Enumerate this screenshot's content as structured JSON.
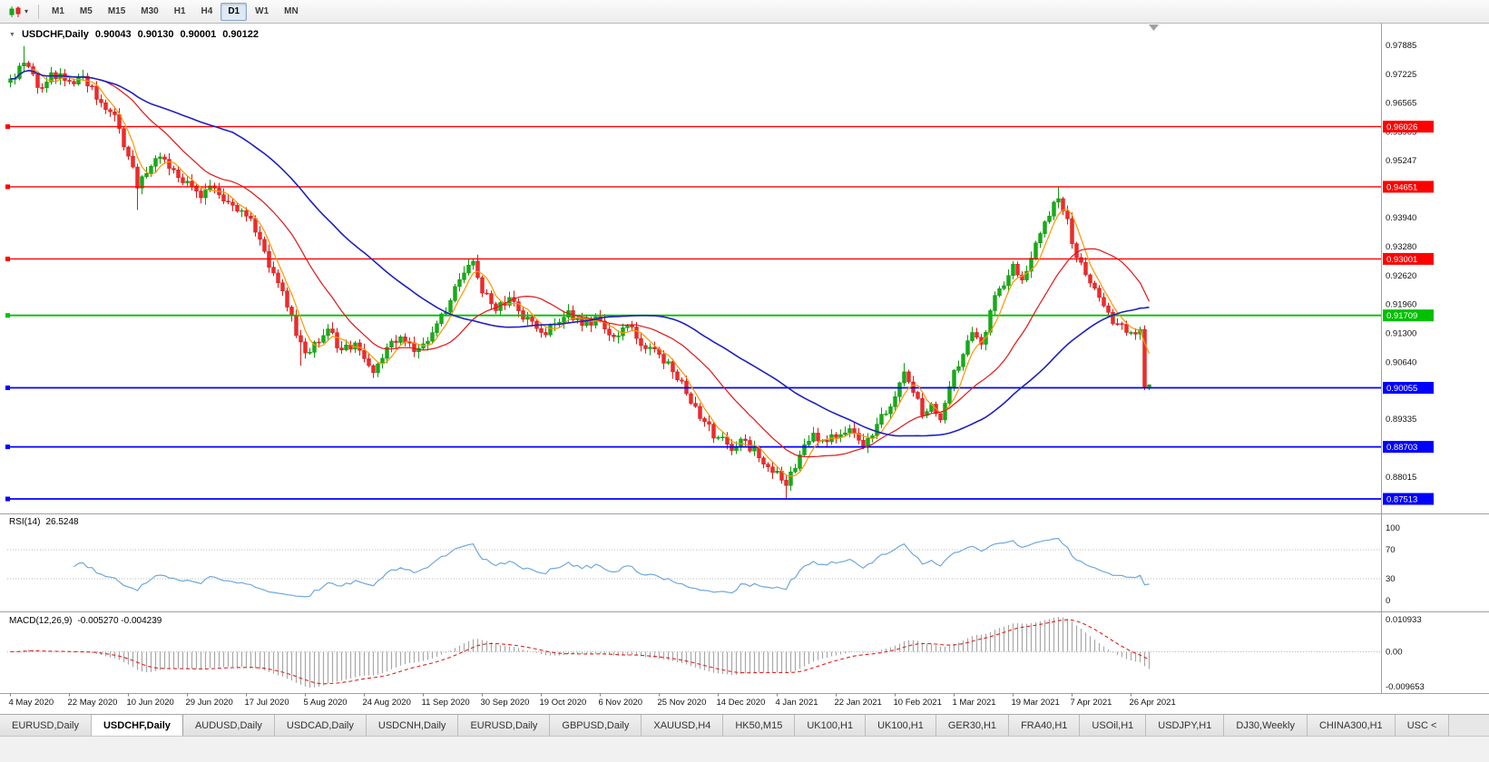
{
  "toolbar": {
    "timeframes": [
      "M1",
      "M5",
      "M15",
      "M30",
      "H1",
      "H4",
      "D1",
      "W1",
      "MN"
    ],
    "active_timeframe": "D1"
  },
  "chart_title": {
    "collapse_icon": "triangle-down",
    "symbol_period": "USDCHF,Daily",
    "open": "0.90043",
    "high": "0.90130",
    "low": "0.90001",
    "close": "0.90122"
  },
  "indicator_labels": {
    "rsi_name": "RSI(14)",
    "rsi_value": "26.5248",
    "macd_name": "MACD(12,26,9)",
    "macd_values": "-0.005270 -0.004239"
  },
  "tabs": {
    "items": [
      "EURUSD,Daily",
      "USDCHF,Daily",
      "AUDUSD,Daily",
      "USDCAD,Daily",
      "USDCNH,Daily",
      "EURUSD,Daily",
      "GBPUSD,Daily",
      "XAUUSD,H4",
      "HK50,M15",
      "UK100,H1",
      "UK100,H1",
      "GER30,H1",
      "FRA40,H1",
      "USOil,H1",
      "USDJPY,H1",
      "DJ30,Weekly",
      "CHINA300,H1",
      "USC <"
    ],
    "active_index": 1
  },
  "chart_data": {
    "type": "candlestick",
    "symbol": "USDCHF",
    "timeframe": "Daily",
    "bars": 252,
    "x_tick_step": 13,
    "x_tick_labels": [
      "4 May 2020",
      "22 May 2020",
      "10 Jun 2020",
      "29 Jun 2020",
      "17 Jul 2020",
      "5 Aug 2020",
      "24 Aug 2020",
      "11 Sep 2020",
      "30 Sep 2020",
      "19 Oct 2020",
      "6 Nov 2020",
      "25 Nov 2020",
      "14 Dec 2020",
      "4 Jan 2021",
      "22 Jan 2021",
      "10 Feb 2021",
      "1 Mar 2021",
      "19 Mar 2021",
      "7 Apr 2021",
      "26 Apr 2021"
    ],
    "price_top": 0.97885,
    "price_bottom": 0.87513,
    "price_axis_labels": [
      "0.97885",
      "0.97225",
      "0.96565",
      "0.95905",
      "0.95247",
      "0.93940",
      "0.93280",
      "0.92620",
      "0.91960",
      "0.91300",
      "0.90640",
      "0.89335",
      "0.88015"
    ],
    "hlines": [
      {
        "price": 0.96026,
        "label": "0.96026",
        "color": "#ff0000",
        "width": 1.4
      },
      {
        "price": 0.94651,
        "label": "0.94651",
        "color": "#ff0000",
        "width": 1.4
      },
      {
        "price": 0.93001,
        "label": "0.93001",
        "color": "#ff0000",
        "width": 1.4
      },
      {
        "price": 0.91709,
        "label": "0.91709",
        "color": "#00c000",
        "width": 1.8
      },
      {
        "price": 0.90055,
        "label": "0.90055",
        "color": "#0000ff",
        "width": 1.8
      },
      {
        "price": 0.88703,
        "label": "0.88703",
        "color": "#0000ff",
        "width": 1.8
      },
      {
        "price": 0.87513,
        "label": "0.87513",
        "color": "#0000ff",
        "width": 1.8
      }
    ],
    "up_color": "#0f9a0f",
    "up_fill": "#17ab17",
    "down_color": "#d41c1c",
    "down_fill": "#ef2a2a",
    "moving_averages": [
      {
        "period": 5,
        "color": "#ff9500"
      },
      {
        "period": 20,
        "color": "#e01616"
      },
      {
        "period": 50,
        "color": "#2020c0"
      }
    ],
    "close_anchors": [
      [
        0,
        0.9712
      ],
      [
        3,
        0.9748
      ],
      [
        6,
        0.9692
      ],
      [
        9,
        0.9726
      ],
      [
        13,
        0.9706
      ],
      [
        16,
        0.9718
      ],
      [
        19,
        0.9665
      ],
      [
        23,
        0.963
      ],
      [
        26,
        0.9535
      ],
      [
        28,
        0.9462
      ],
      [
        31,
        0.9512
      ],
      [
        34,
        0.9528
      ],
      [
        37,
        0.9486
      ],
      [
        39,
        0.9478
      ],
      [
        42,
        0.944
      ],
      [
        45,
        0.9462
      ],
      [
        48,
        0.943
      ],
      [
        52,
        0.9398
      ],
      [
        55,
        0.9345
      ],
      [
        58,
        0.9268
      ],
      [
        61,
        0.919
      ],
      [
        63,
        0.9125
      ],
      [
        65,
        0.9085
      ],
      [
        67,
        0.911
      ],
      [
        70,
        0.914
      ],
      [
        73,
        0.9092
      ],
      [
        76,
        0.9108
      ],
      [
        78,
        0.9072
      ],
      [
        80,
        0.904
      ],
      [
        83,
        0.9098
      ],
      [
        86,
        0.9122
      ],
      [
        89,
        0.9088
      ],
      [
        91,
        0.9106
      ],
      [
        94,
        0.9152
      ],
      [
        97,
        0.9205
      ],
      [
        100,
        0.9268
      ],
      [
        102,
        0.9295
      ],
      [
        104,
        0.9222
      ],
      [
        107,
        0.9182
      ],
      [
        110,
        0.9212
      ],
      [
        113,
        0.9162
      ],
      [
        117,
        0.9132
      ],
      [
        120,
        0.9152
      ],
      [
        123,
        0.9182
      ],
      [
        126,
        0.9148
      ],
      [
        130,
        0.9158
      ],
      [
        133,
        0.9122
      ],
      [
        136,
        0.9148
      ],
      [
        139,
        0.9102
      ],
      [
        143,
        0.9082
      ],
      [
        146,
        0.9042
      ],
      [
        149,
        0.8992
      ],
      [
        152,
        0.8935
      ],
      [
        156,
        0.8892
      ],
      [
        159,
        0.8862
      ],
      [
        162,
        0.8885
      ],
      [
        165,
        0.8845
      ],
      [
        169,
        0.8815
      ],
      [
        171,
        0.8782
      ],
      [
        174,
        0.8852
      ],
      [
        177,
        0.8902
      ],
      [
        180,
        0.8882
      ],
      [
        182,
        0.8892
      ],
      [
        185,
        0.8912
      ],
      [
        188,
        0.8872
      ],
      [
        191,
        0.8922
      ],
      [
        194,
        0.8962
      ],
      [
        195,
        0.8985
      ],
      [
        197,
        0.9042
      ],
      [
        199,
        0.8995
      ],
      [
        201,
        0.8942
      ],
      [
        203,
        0.8968
      ],
      [
        205,
        0.8932
      ],
      [
        207,
        0.9008
      ],
      [
        208,
        0.9045
      ],
      [
        210,
        0.9082
      ],
      [
        212,
        0.9132
      ],
      [
        214,
        0.9105
      ],
      [
        216,
        0.9182
      ],
      [
        218,
        0.9232
      ],
      [
        220,
        0.9262
      ],
      [
        221,
        0.9288
      ],
      [
        223,
        0.9252
      ],
      [
        225,
        0.9302
      ],
      [
        227,
        0.9358
      ],
      [
        229,
        0.9398
      ],
      [
        231,
        0.9438
      ],
      [
        233,
        0.9392
      ],
      [
        234,
        0.9335
      ],
      [
        236,
        0.9292
      ],
      [
        238,
        0.9245
      ],
      [
        240,
        0.9212
      ],
      [
        242,
        0.9178
      ],
      [
        244,
        0.9152
      ],
      [
        247,
        0.9132
      ],
      [
        249,
        0.9139
      ],
      [
        250,
        0.9008
      ],
      [
        251,
        0.90122
      ]
    ],
    "bar_overrides": {
      "3": {
        "h": 0.9787
      },
      "28": {
        "l": 0.9412
      },
      "64": {
        "l": 0.9056
      },
      "80": {
        "l": 0.9028
      },
      "102": {
        "h": 0.9302
      },
      "171": {
        "l": 0.87515
      },
      "197": {
        "h": 0.9062
      },
      "231": {
        "h": 0.94648
      },
      "250": {
        "l": 0.9
      },
      "251": {
        "o": 0.90043,
        "h": 0.9013,
        "l": 0.90001,
        "c": 0.90122
      }
    },
    "rsi": {
      "period": 14,
      "current": "26.5248",
      "axis_labels": [
        "100",
        "70",
        "30",
        "0"
      ],
      "levels": [
        70,
        30
      ],
      "color": "#6fa8dc"
    },
    "macd": {
      "fast": 12,
      "slow": 26,
      "signal_period": 9,
      "current_macd": "-0.005270",
      "current_signal": "-0.004239",
      "axis_labels": [
        "0.010933",
        "0.00",
        "-0.009653"
      ],
      "hist_color": "#a8a8a8",
      "signal_color": "#dd2222"
    }
  }
}
